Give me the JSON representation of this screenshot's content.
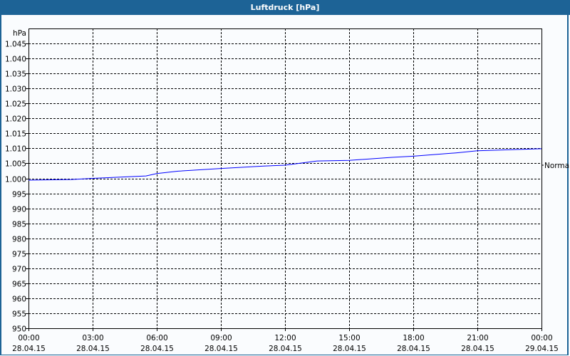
{
  "window": {
    "title": "Luftdruck [hPa]"
  },
  "chart_data": {
    "type": "line",
    "title": "Luftdruck [hPa]",
    "ylabel": "hPa",
    "ylim": [
      950,
      1050
    ],
    "yticks": [
      950,
      955,
      960,
      965,
      970,
      975,
      980,
      985,
      990,
      995,
      1000,
      1005,
      1010,
      1015,
      1020,
      1025,
      1030,
      1035,
      1040,
      1045
    ],
    "ytick_labels": [
      "950",
      "955",
      "960",
      "965",
      "970",
      "975",
      "980",
      "985",
      "990",
      "995",
      "1.000",
      "1.005",
      "1.010",
      "1.015",
      "1.020",
      "1.025",
      "1.030",
      "1.035",
      "1.040",
      "1.045"
    ],
    "xlim_hours": [
      0,
      24
    ],
    "xticks": [
      {
        "time": "00:00",
        "date": "28.04.15"
      },
      {
        "time": "03:00",
        "date": "28.04.15"
      },
      {
        "time": "06:00",
        "date": "28.04.15"
      },
      {
        "time": "09:00",
        "date": "28.04.15"
      },
      {
        "time": "12:00",
        "date": "28.04.15"
      },
      {
        "time": "15:00",
        "date": "28.04.15"
      },
      {
        "time": "18:00",
        "date": "28.04.15"
      },
      {
        "time": "21:00",
        "date": "28.04.15"
      },
      {
        "time": "00:00",
        "date": "29.04.15"
      }
    ],
    "grid": true,
    "series": [
      {
        "color": "#0000ff",
        "x_hours": [
          0,
          2,
          3,
          5.5,
          6,
          7,
          9,
          11,
          12,
          13.5,
          15,
          17,
          18,
          20,
          21,
          24
        ],
        "values": [
          999.4,
          999.6,
          1000.0,
          1000.8,
          1001.6,
          1002.4,
          1003.3,
          1004.1,
          1004.4,
          1005.8,
          1006.0,
          1007.0,
          1007.4,
          1008.5,
          1009.2,
          1009.9
        ]
      }
    ],
    "reference": {
      "label": "Normal",
      "value": 1005
    }
  }
}
